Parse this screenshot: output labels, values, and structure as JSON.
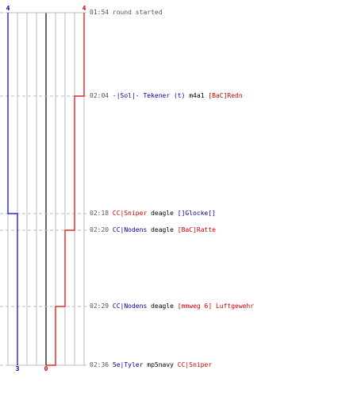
{
  "chart_data": {
    "type": "line",
    "series": [
      {
        "side": "left",
        "color": "#0000cc",
        "start": 4,
        "end": 3,
        "x": [
          0,
          1
        ],
        "steps": [
          4,
          3
        ]
      },
      {
        "side": "right",
        "color": "#dd0000",
        "start": 4,
        "end": 0,
        "x": [
          0,
          1,
          2,
          3,
          4
        ],
        "steps": [
          4,
          3,
          2,
          1,
          0
        ]
      }
    ],
    "count_labels": {
      "top_left": "4",
      "top_right": "4",
      "bottom_left": "3",
      "bottom_right": "0"
    },
    "grid": true
  },
  "colors": {
    "blue": "#0000aa",
    "red": "#cc0000",
    "time": "#555555",
    "dash": "#bbbbbb",
    "grid": "#bbbbbb"
  },
  "events": [
    {
      "time": "01:54",
      "text": "round started",
      "type": "info"
    },
    {
      "time": "02:04",
      "killer": "-|Sol|- Tekener (t)",
      "killer_team": "blue",
      "weapon": "m4a1",
      "victim": "[BaC]Redn",
      "victim_team": "red"
    },
    {
      "time": "02:18",
      "killer": "CC|Sniper",
      "killer_team": "red",
      "weapon": "deagle",
      "victim": "[]Glocke[]",
      "victim_team": "blue"
    },
    {
      "time": "02:20",
      "killer": "CC|Nodens",
      "killer_team": "blue",
      "weapon": "deagle",
      "victim": "[BaC]Ratte",
      "victim_team": "red"
    },
    {
      "time": "02:29",
      "killer": "CC|Nodens",
      "killer_team": "blue",
      "weapon": "deagle",
      "victim": "[mmweg 6] Luftgewehr",
      "victim_team": "red"
    },
    {
      "time": "02:36",
      "killer": "5e|Tyler",
      "killer_team": "blue",
      "weapon": "mp5navy",
      "victim": "CC|Sniper",
      "victim_team": "red"
    }
  ]
}
